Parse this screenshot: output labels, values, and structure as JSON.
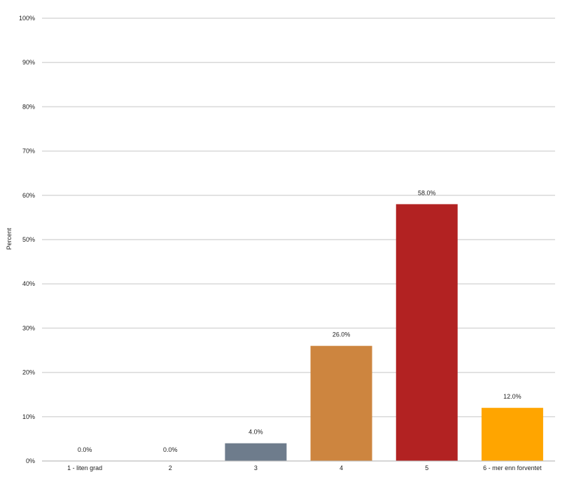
{
  "chart_data": {
    "type": "bar",
    "ylabel": "Percent",
    "ylim": [
      0,
      100
    ],
    "y_ticks": [
      "0%",
      "10%",
      "20%",
      "30%",
      "40%",
      "50%",
      "60%",
      "70%",
      "80%",
      "90%",
      "100%"
    ],
    "grid": true,
    "categories": [
      "1 - liten grad",
      "2",
      "3",
      "4",
      "5",
      "6 - mer enn forventet"
    ],
    "values": [
      0.0,
      0.0,
      4.0,
      26.0,
      58.0,
      12.0
    ],
    "data_labels": [
      "0.0%",
      "0.0%",
      "4.0%",
      "26.0%",
      "58.0%",
      "12.0%"
    ],
    "colors": [
      "#6e7c8c",
      "#6e7c8c",
      "#6e7c8c",
      "#cd853f",
      "#b22222",
      "#ffa500"
    ]
  }
}
